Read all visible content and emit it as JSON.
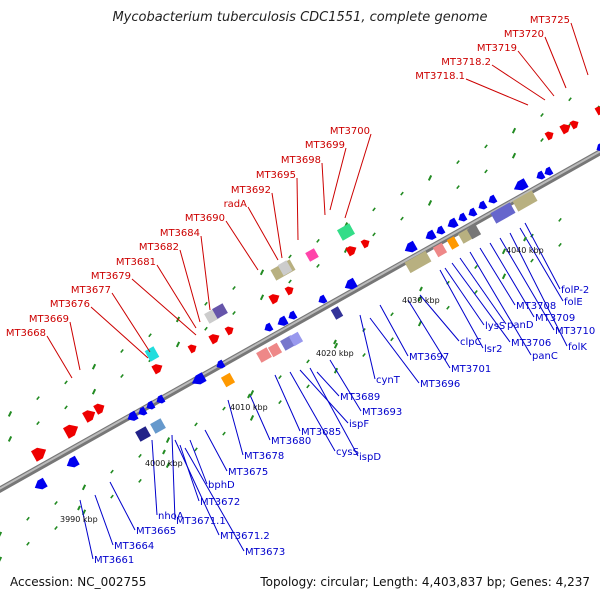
{
  "title": "Mycobacterium tuberculosis CDC1551, complete genome",
  "footer": {
    "accession": "Accession: NC_002755",
    "stats": "Topology: circular; Length: 4,403,837 bp; Genes: 4,237"
  },
  "scale_labels": [
    "3990 kbp",
    "4000 kbp",
    "4010 kbp",
    "4020 kbp",
    "4030 kbp",
    "4040 kbp"
  ],
  "upper_labels": [
    "MT3668",
    "MT3669",
    "MT3676",
    "MT3677",
    "MT3679",
    "MT3681",
    "MT3682",
    "MT3684",
    "MT3690",
    "radA",
    "MT3692",
    "MT3695",
    "MT3698",
    "MT3699",
    "MT3700",
    "MT3718.1",
    "MT3718.2",
    "MT3719",
    "MT3720",
    "MT3725"
  ],
  "lower_labels": [
    "MT3661",
    "MT3664",
    "MT3665",
    "nhoA",
    "MT3671.1",
    "MT3671.2",
    "MT3672",
    "MT3673",
    "bphD",
    "MT3675",
    "MT3678",
    "MT3680",
    "MT3685",
    "cysS",
    "ispF",
    "ispD",
    "MT3689",
    "MT3693",
    "cynT",
    "MT3696",
    "MT3697",
    "MT3701",
    "clpC",
    "lsr2",
    "lysS",
    "MT3706",
    "panD",
    "panC",
    "MT3708",
    "MT3709",
    "MT3710",
    "folK",
    "folE",
    "folP-2"
  ],
  "colors": {
    "forward_gene": "#ee0000",
    "reverse_gene": "#0000ee",
    "upper_label": "#cc0000",
    "lower_label": "#0000cc",
    "backbone": "#999999",
    "tick": "#228b22"
  }
}
